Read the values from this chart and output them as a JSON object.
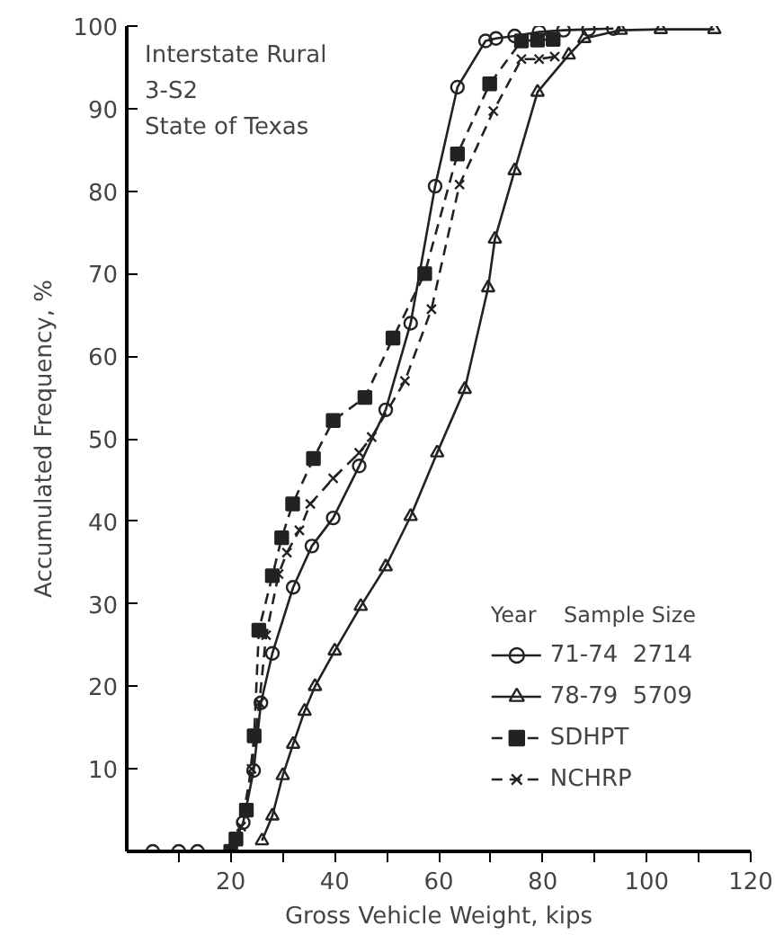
{
  "chart_data": {
    "type": "line",
    "xlabel": "Gross Vehicle Weight, kips",
    "ylabel": "Accumulated Frequency, %",
    "annotations": [
      "Interstate Rural",
      "3-S2",
      "State of Texas"
    ],
    "legend_title": "Year    Sample Size",
    "legend": "bottom right",
    "grid": false,
    "xlim": [
      0,
      120
    ],
    "ylim": [
      0,
      100
    ],
    "xticks": [
      {
        "value": 10,
        "label": null
      },
      20,
      {
        "value": 30,
        "label": null
      },
      40,
      {
        "value": 50,
        "label": null
      },
      60,
      {
        "value": 70,
        "label": null
      },
      80,
      {
        "value": 90,
        "label": null
      },
      100,
      {
        "value": 110,
        "label": null
      },
      120
    ],
    "yticks": [
      10,
      20,
      30,
      40,
      50,
      60,
      70,
      80,
      90,
      100
    ],
    "series": [
      {
        "name": "71-74  2714",
        "color": "#222222",
        "marker": "circle",
        "line_style": "solid",
        "x": [
          5,
          10,
          13.6,
          20,
          22.4,
          24.4,
          25.8,
          28,
          32,
          35.6,
          39.7,
          44.7,
          49.8,
          54.6,
          59.3,
          63.6,
          69,
          71,
          74.6,
          79.3,
          84,
          88.8,
          93.6
        ],
        "values": [
          0,
          0,
          0,
          0,
          3.5,
          9.8,
          18,
          24,
          32,
          37,
          40.4,
          46.7,
          53.5,
          64,
          80.6,
          92.6,
          98.2,
          98.5,
          98.8,
          99.3,
          99.5,
          99.6,
          99.7
        ]
      },
      {
        "name": "78-79  5709",
        "color": "#222222",
        "marker": "triangle",
        "line_style": "solid",
        "x": [
          26,
          28,
          30,
          32,
          34.2,
          36.2,
          40,
          45,
          49.8,
          54.6,
          59.7,
          65,
          69.5,
          70.8,
          74.6,
          79,
          85,
          88,
          95,
          102.7,
          113
        ],
        "values": [
          1.3,
          4.3,
          9.2,
          13,
          17,
          20,
          24.3,
          29.7,
          34.5,
          40.6,
          48.3,
          56,
          68.3,
          74.2,
          82.5,
          92,
          96.5,
          98.5,
          99.5,
          99.6,
          99.6
        ]
      },
      {
        "name": "SDHPT",
        "color": "#222222",
        "marker": "square",
        "line_style": "dashed",
        "x": [
          20,
          21,
          23,
          24.5,
          25.4,
          28,
          29.8,
          31.9,
          35.9,
          39.7,
          45.8,
          51.2,
          57.3,
          63.6,
          69.8,
          75.9,
          79,
          82
        ],
        "values": [
          0,
          1.5,
          5,
          14,
          26.8,
          33.4,
          38,
          42.1,
          47.6,
          52.2,
          55,
          62.2,
          70,
          84.5,
          93,
          98.2,
          98.3,
          98.4
        ]
      },
      {
        "name": "NCHRP",
        "color": "#222222",
        "marker": "cross",
        "line_style": "dashed",
        "x": [
          20,
          22,
          24,
          25.5,
          26.8,
          29.2,
          30.8,
          33.2,
          35.3,
          39.7,
          44.7,
          47.1,
          53.5,
          58.6,
          64,
          70.5,
          75.9,
          79.3,
          82.3
        ],
        "values": [
          0,
          3,
          10,
          18,
          26.2,
          33.6,
          36.2,
          38.9,
          42.1,
          45.2,
          48.3,
          50.2,
          57,
          65.7,
          80.8,
          89.7,
          96,
          96,
          96.3
        ]
      }
    ]
  }
}
